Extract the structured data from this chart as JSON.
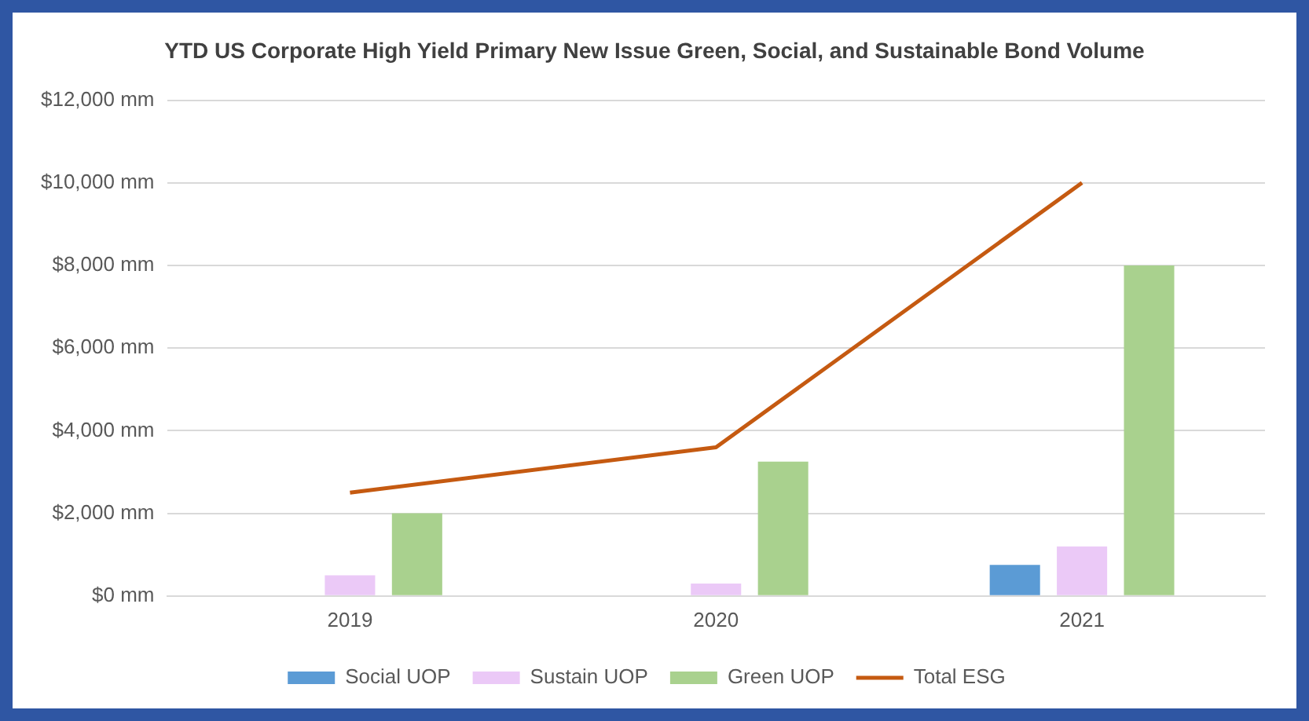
{
  "chart_data": {
    "type": "bar",
    "title": "YTD US Corporate High Yield Primary New Issue Green, Social, and Sustainable Bond Volume",
    "categories": [
      "2019",
      "2020",
      "2021"
    ],
    "series": [
      {
        "name": "Social UOP",
        "color": "#5b9bd5",
        "values": [
          0,
          0,
          750
        ]
      },
      {
        "name": "Sustain UOP",
        "color": "#ebc9f7",
        "values": [
          500,
          300,
          1200
        ]
      },
      {
        "name": "Green UOP",
        "color": "#a9d18e",
        "values": [
          2000,
          3250,
          8000
        ]
      },
      {
        "name": "Total ESG",
        "type": "line",
        "color": "#c55a11",
        "values": [
          2500,
          3600,
          10000
        ],
        "marker": "none"
      }
    ],
    "ylim": [
      0,
      12000
    ],
    "yticks": [
      {
        "value": 0,
        "label": "$0 mm"
      },
      {
        "value": 2000,
        "label": "$2,000 mm"
      },
      {
        "value": 4000,
        "label": "$4,000 mm"
      },
      {
        "value": 6000,
        "label": "$6,000 mm"
      },
      {
        "value": 8000,
        "label": "$8,000 mm"
      },
      {
        "value": 10000,
        "label": "$10,000 mm"
      },
      {
        "value": 12000,
        "label": "$12,000 mm"
      }
    ],
    "grid": "y",
    "legend": "bottom"
  }
}
